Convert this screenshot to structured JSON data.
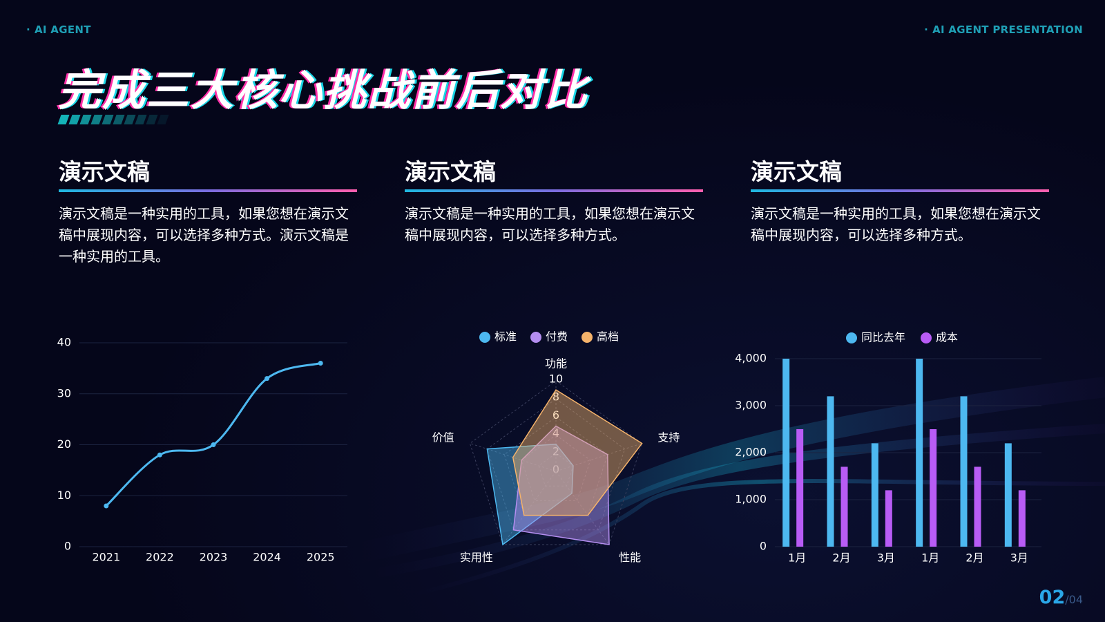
{
  "header": {
    "brand_left": "AI AGENT",
    "brand_right": "AI AGENT PRESENTATION",
    "title": "完成三大核心挑战前后对比"
  },
  "columns": [
    {
      "heading": "演示文稿",
      "body": "演示文稿是一种实用的工具，如果您想在演示文稿中展现内容，可以选择多种方式。演示文稿是一种实用的工具。"
    },
    {
      "heading": "演示文稿",
      "body": "演示文稿是一种实用的工具，如果您想在演示文稿中展现内容，可以选择多种方式。"
    },
    {
      "heading": "演示文稿",
      "body": "演示文稿是一种实用的工具，如果您想在演示文稿中展现内容，可以选择多种方式。"
    }
  ],
  "chart_data": [
    {
      "type": "line",
      "categories": [
        "2021",
        "2022",
        "2023",
        "2024",
        "2025"
      ],
      "values": [
        8,
        18,
        20,
        33,
        36
      ],
      "color": "#4db8f0",
      "smooth": true,
      "ylim": [
        0,
        40
      ],
      "yticks": [
        0,
        10,
        20,
        30,
        40
      ],
      "grid": true
    },
    {
      "type": "radar",
      "axes": [
        "功能",
        "支持",
        "性能",
        "实用性",
        "价值"
      ],
      "rlim": [
        0,
        10
      ],
      "rticks": [
        0,
        2,
        4,
        6,
        8,
        10
      ],
      "legend": "top",
      "series": [
        {
          "name": "标准",
          "color": "#4db8f0",
          "values": [
            3,
            2,
            3,
            10,
            8
          ]
        },
        {
          "name": "付费",
          "color": "#b48ef0",
          "values": [
            5,
            6,
            10,
            8,
            4
          ]
        },
        {
          "name": "高档",
          "color": "#f5b36b",
          "values": [
            9,
            10,
            6,
            6,
            5
          ]
        }
      ]
    },
    {
      "type": "bar",
      "categories": [
        "1月",
        "2月",
        "3月",
        "1月",
        "2月",
        "3月"
      ],
      "legend": "top",
      "grid": true,
      "ylim": [
        0,
        4000
      ],
      "yticks": [
        0,
        {
          "value": 1000,
          "label": "1,000"
        },
        {
          "value": 2000,
          "label": "2,000"
        },
        {
          "value": 3000,
          "label": "3,000"
        },
        {
          "value": 4000,
          "label": "4,000"
        }
      ],
      "series": [
        {
          "name": "同比去年",
          "color": "#4db8f0",
          "values": [
            4000,
            3200,
            2200,
            4000,
            3200,
            2200
          ]
        },
        {
          "name": "成本",
          "color": "#b85cf5",
          "values": [
            2500,
            1700,
            1200,
            2500,
            1700,
            1200
          ]
        }
      ]
    }
  ],
  "page": {
    "current": "02",
    "total": "/04"
  }
}
